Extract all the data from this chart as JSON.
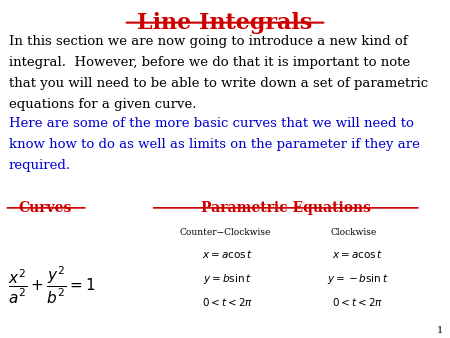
{
  "title": "Line Integrals",
  "title_color": "#cc0000",
  "title_fontsize": 16,
  "background_color": "#ffffff",
  "page_number": "1",
  "para1_line1": "In this section we are now going to introduce a new kind of",
  "para1_line2": "integral.  However, before we do that it is important to note",
  "para1_line3": "that you will need to be able to write down a set of parametric",
  "para1_line4": "equations for a given curve.",
  "para1_color": "#000000",
  "para1_fontsize": 9.5,
  "para2_line1": "Here are some of the more basic curves that we will need to",
  "para2_line2": "know how to do as well as limits on the parameter if they are",
  "para2_line3": "required.",
  "para2_color": "#0000cc",
  "para2_fontsize": 9.5,
  "curves_label": "Curves",
  "curves_label_color": "#cc0000",
  "param_label": "Parametric Equations",
  "param_label_color": "#cc0000",
  "ccw_label": "Counter−Clockwise",
  "cw_label": "Clockwise",
  "text_color": "#000000"
}
